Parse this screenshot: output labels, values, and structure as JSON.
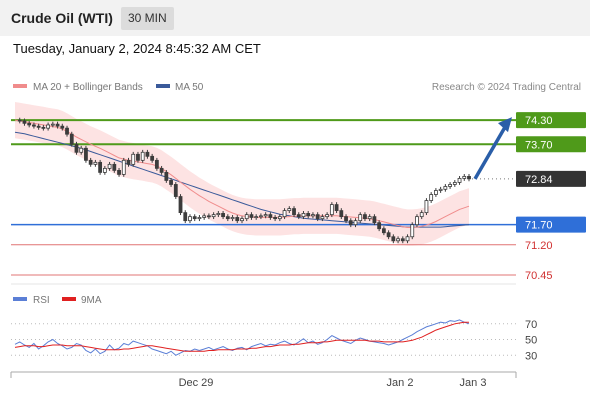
{
  "header": {
    "title": "Crude Oil (WTI)",
    "interval": "30 MIN"
  },
  "timestamp": "Tuesday, January 2, 2024 8:45:32 AM CET",
  "legend": {
    "ma20": "MA 20 + Bollinger Bands",
    "ma50": "MA 50",
    "credit": "Research © 2024 Trading Central"
  },
  "rsi_legend": {
    "rsi": "RSI",
    "ma9": "9MA"
  },
  "colors": {
    "resistance": "#4f9a1a",
    "support": "#2f6fd8",
    "support_minor": "#e07474",
    "last_price": "#333333",
    "ma20": "#f08c8c",
    "ma50": "#3a5a9a",
    "bollinger": "#fde3e3",
    "candle": "#3c3c3c",
    "rsi": "#5b7fd6",
    "rsi_ma": "#e02020",
    "arrow": "#2a5ea8"
  },
  "chart_data": [
    {
      "type": "candlestick",
      "title": "Crude Oil (WTI)",
      "interval": "30 MIN",
      "x_ticks": [
        "Dec 29",
        "Jan 2",
        "Jan 3"
      ],
      "y_range": [
        70.25,
        74.85
      ],
      "levels": [
        {
          "value": 74.3,
          "label": "74.30",
          "kind": "resistance"
        },
        {
          "value": 73.7,
          "label": "73.70",
          "kind": "resistance"
        },
        {
          "value": 72.84,
          "label": "72.84",
          "kind": "last_price"
        },
        {
          "value": 71.7,
          "label": "71.70",
          "kind": "support"
        },
        {
          "value": 71.2,
          "label": "71.20",
          "kind": "support_minor"
        },
        {
          "value": 70.45,
          "label": "70.45",
          "kind": "support_minor"
        }
      ],
      "close": [
        74.3,
        74.28,
        74.22,
        74.18,
        74.15,
        74.12,
        74.1,
        74.18,
        74.2,
        74.15,
        74.1,
        73.95,
        73.7,
        73.5,
        73.6,
        73.3,
        73.2,
        73.25,
        73.0,
        73.1,
        73.2,
        73.05,
        72.95,
        73.3,
        73.2,
        73.45,
        73.3,
        73.5,
        73.4,
        73.3,
        73.1,
        73.0,
        72.8,
        72.7,
        72.4,
        72.0,
        71.8,
        71.9,
        71.85,
        71.88,
        71.92,
        71.9,
        71.95,
        71.98,
        71.9,
        71.85,
        71.88,
        71.8,
        71.85,
        71.95,
        71.88,
        71.9,
        71.92,
        71.95,
        71.88,
        71.85,
        71.9,
        72.05,
        72.1,
        71.95,
        71.9,
        71.98,
        71.92,
        71.95,
        71.85,
        71.9,
        71.95,
        72.2,
        72.05,
        71.9,
        71.8,
        71.7,
        71.8,
        71.95,
        71.85,
        71.9,
        71.75,
        71.6,
        71.5,
        71.4,
        71.3,
        71.35,
        71.3,
        71.4,
        71.7,
        71.9,
        72.0,
        72.3,
        72.45,
        72.55,
        72.58,
        72.65,
        72.7,
        72.75,
        72.85,
        72.9,
        72.84
      ],
      "ma20": [
        74.3,
        74.28,
        74.26,
        74.24,
        74.22,
        74.2,
        74.18,
        74.16,
        74.14,
        74.12,
        74.08,
        74.02,
        73.95,
        73.88,
        73.82,
        73.76,
        73.7,
        73.65,
        73.6,
        73.54,
        73.48,
        73.42,
        73.36,
        73.33,
        73.3,
        73.28,
        73.26,
        73.24,
        73.22,
        73.2,
        73.16,
        73.1,
        73.02,
        72.94,
        72.85,
        72.76,
        72.67,
        72.58,
        72.5,
        72.42,
        72.35,
        72.28,
        72.22,
        72.16,
        72.1,
        72.04,
        71.99,
        71.95,
        71.92,
        71.9,
        71.89,
        71.88,
        71.88,
        71.88,
        71.88,
        71.88,
        71.88,
        71.89,
        71.9,
        71.91,
        71.91,
        71.92,
        71.92,
        71.92,
        71.92,
        71.92,
        71.92,
        71.92,
        71.92,
        71.91,
        71.9,
        71.89,
        71.88,
        71.87,
        71.86,
        71.85,
        71.83,
        71.8,
        71.77,
        71.74,
        71.71,
        71.68,
        71.65,
        71.63,
        71.63,
        71.64,
        71.66,
        71.69,
        71.73,
        71.78,
        71.84,
        71.9,
        71.96,
        72.02,
        72.08,
        72.12,
        72.16
      ],
      "ma50": [
        74.0,
        73.98,
        73.96,
        73.93,
        73.9,
        73.87,
        73.84,
        73.81,
        73.78,
        73.75,
        73.72,
        73.69,
        73.66,
        73.63,
        73.6,
        73.56,
        73.52,
        73.48,
        73.44,
        73.4,
        73.36,
        73.32,
        73.28,
        73.24,
        73.2,
        73.16,
        73.12,
        73.08,
        73.04,
        73.0,
        72.96,
        72.92,
        72.88,
        72.84,
        72.8,
        72.76,
        72.72,
        72.68,
        72.64,
        72.6,
        72.56,
        72.52,
        72.48,
        72.44,
        72.4,
        72.36,
        72.32,
        72.28,
        72.24,
        72.2,
        72.16,
        72.12,
        72.08,
        72.05,
        72.02,
        71.99,
        71.96,
        71.94,
        71.92,
        71.9,
        71.88,
        71.86,
        71.85,
        71.84,
        71.83,
        71.82,
        71.81,
        71.8,
        71.79,
        71.78,
        71.77,
        71.76,
        71.75,
        71.74,
        71.73,
        71.72,
        71.71,
        71.7,
        71.69,
        71.68,
        71.67,
        71.66,
        71.65,
        71.64,
        71.64,
        71.64,
        71.64,
        71.64,
        71.64,
        71.64,
        71.64,
        71.65,
        71.66,
        71.67,
        71.68,
        71.69,
        71.7
      ],
      "bollinger_half_width": 0.45,
      "forecast_target": 74.3
    },
    {
      "type": "line",
      "title": "RSI",
      "series": [
        {
          "name": "RSI"
        },
        {
          "name": "9MA"
        }
      ],
      "y_ticks": [
        70,
        50,
        30
      ],
      "y_range": [
        10,
        85
      ],
      "rsi": [
        44,
        47,
        43,
        40,
        45,
        38,
        42,
        47,
        50,
        45,
        42,
        38,
        40,
        45,
        43,
        36,
        33,
        38,
        32,
        35,
        43,
        37,
        39,
        45,
        43,
        48,
        46,
        44,
        42,
        38,
        36,
        34,
        32,
        35,
        30,
        33,
        36,
        35,
        38,
        36,
        38,
        40,
        37,
        39,
        41,
        38,
        36,
        39,
        40,
        37,
        41,
        43,
        45,
        42,
        44,
        43,
        46,
        48,
        45,
        43,
        47,
        51,
        46,
        48,
        44,
        46,
        50,
        55,
        52,
        49,
        47,
        45,
        49,
        52,
        50,
        48,
        47,
        46,
        45,
        43,
        45,
        47,
        50,
        53,
        56,
        60,
        63,
        66,
        68,
        70,
        72,
        71,
        74,
        73,
        75,
        72,
        70
      ],
      "ma9": [
        40,
        41,
        42,
        42,
        42,
        41,
        41,
        42,
        43,
        43,
        43,
        42,
        42,
        42,
        42,
        41,
        40,
        39,
        38,
        37,
        37,
        37,
        37,
        38,
        38,
        39,
        40,
        41,
        42,
        42,
        41,
        40,
        39,
        38,
        37,
        36,
        35,
        35,
        35,
        35,
        35,
        36,
        36,
        37,
        37,
        37,
        37,
        38,
        38,
        38,
        39,
        39,
        40,
        41,
        41,
        42,
        43,
        43,
        43,
        44,
        44,
        45,
        46,
        46,
        46,
        47,
        47,
        48,
        49,
        49,
        49,
        49,
        49,
        49,
        49,
        48,
        48,
        48,
        47,
        47,
        47,
        47,
        47,
        48,
        49,
        51,
        53,
        56,
        59,
        62,
        64,
        66,
        68,
        70,
        71,
        72,
        72
      ]
    }
  ]
}
